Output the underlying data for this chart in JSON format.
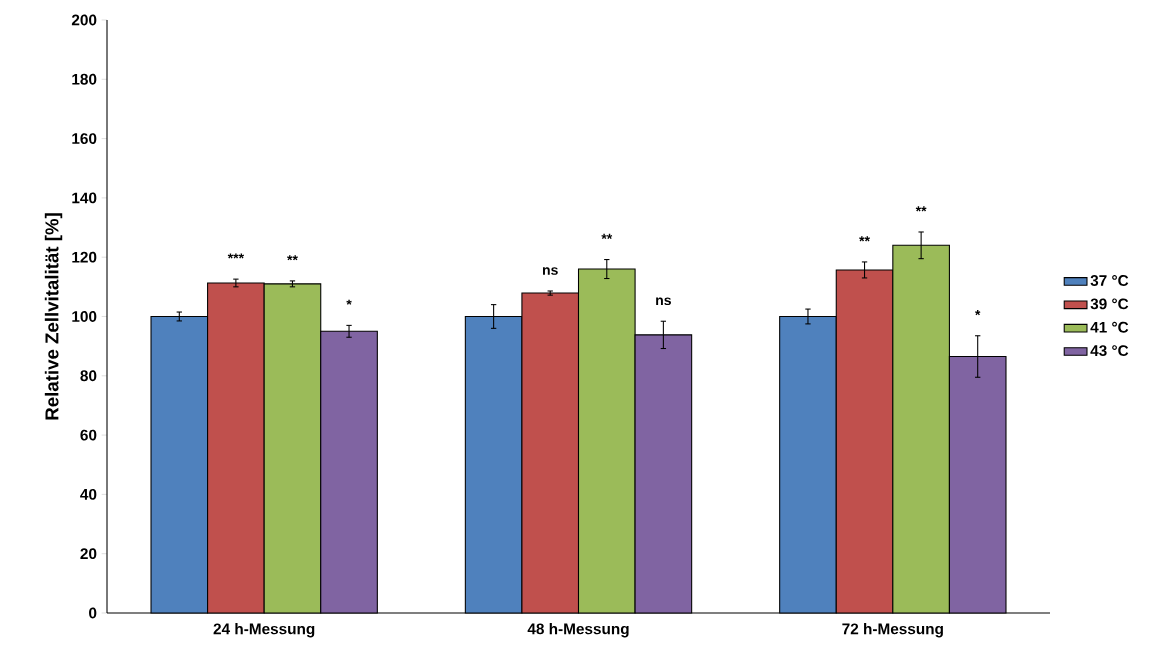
{
  "chart_data": {
    "type": "bar",
    "ylabel": "Relative Zellvitalität [%]",
    "categories": [
      "24 h-Messung",
      "48 h-Messung",
      "72 h-Messung"
    ],
    "series": [
      {
        "name": "37 °C",
        "color": "#4f81bd",
        "values": [
          100,
          100,
          100
        ],
        "errors": [
          1.5,
          4,
          2.5
        ],
        "value_labels": [
          null,
          null,
          null
        ]
      },
      {
        "name": "39 °C",
        "color": "#c0504d",
        "values": [
          111.3,
          107.9,
          115.7
        ],
        "errors": [
          1.3,
          0.7,
          2.7
        ],
        "value_labels": [
          "***",
          "ns",
          "**"
        ]
      },
      {
        "name": "41 °C",
        "color": "#9bbb59",
        "values": [
          111,
          116,
          124
        ],
        "errors": [
          1,
          3.2,
          4.5
        ],
        "value_labels": [
          "**",
          "**",
          "**"
        ]
      },
      {
        "name": "43 °C",
        "color": "#8064a2",
        "values": [
          95,
          93.8,
          86.5
        ],
        "errors": [
          2,
          4.6,
          7
        ],
        "value_labels": [
          "*",
          "ns",
          "*"
        ]
      }
    ],
    "ylim": [
      0,
      200
    ],
    "yticks": [
      0,
      20,
      40,
      60,
      80,
      100,
      120,
      140,
      160,
      180,
      200
    ],
    "legend": "right",
    "grid": false
  }
}
